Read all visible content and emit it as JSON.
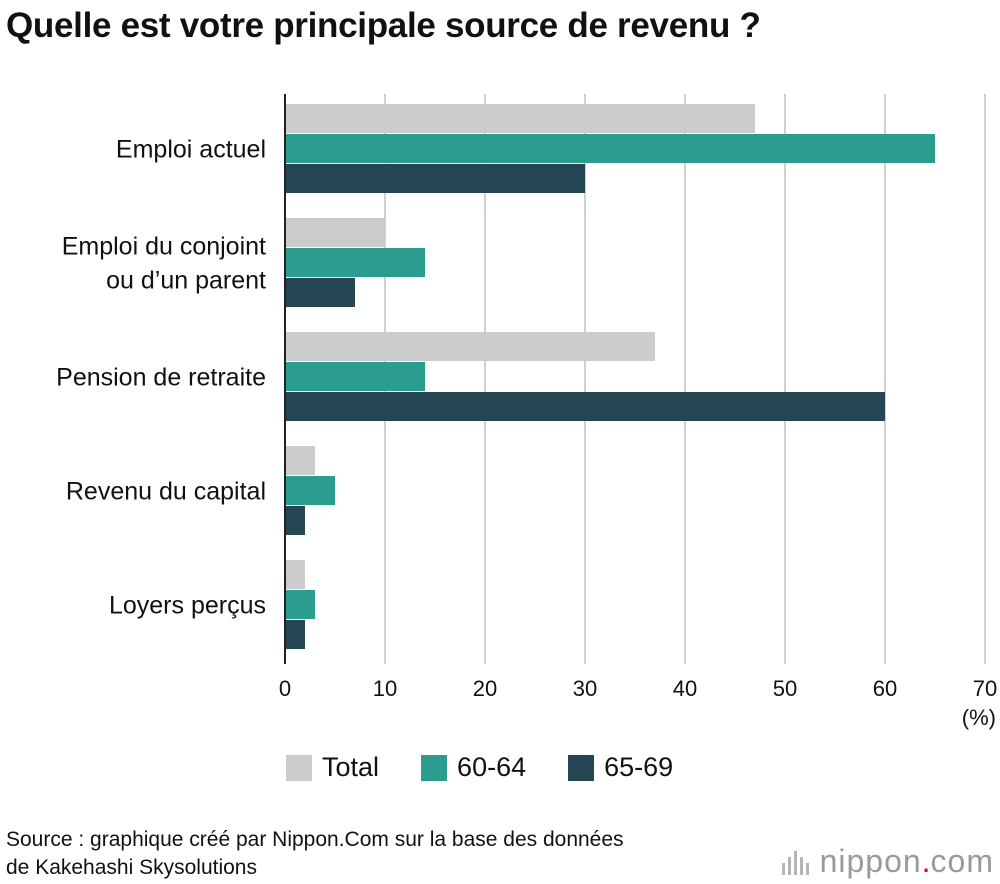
{
  "title": "Quelle est votre principale source de revenu ?",
  "chart_data": {
    "type": "bar",
    "orientation": "horizontal",
    "categories": [
      [
        "Emploi actuel"
      ],
      [
        "Emploi du conjoint",
        "ou d’un parent"
      ],
      [
        "Pension de retraite"
      ],
      [
        "Revenu du capital"
      ],
      [
        "Loyers perçus"
      ]
    ],
    "series": [
      {
        "name": "Total",
        "color": "#cccccc",
        "values": [
          47,
          10,
          37,
          3,
          2
        ]
      },
      {
        "name": "60-64",
        "color": "#2a9d8f",
        "values": [
          65,
          14,
          14,
          5,
          3
        ]
      },
      {
        "name": "65-69",
        "color": "#264653",
        "values": [
          30,
          7,
          60,
          2,
          2
        ]
      }
    ],
    "xlim": [
      0,
      70
    ],
    "xticks": [
      "0",
      "10",
      "20",
      "30",
      "40",
      "50",
      "60",
      "70"
    ],
    "xunit": "(%)",
    "grid": true,
    "legend": "bottom"
  },
  "source": {
    "line1": "Source : graphique créé par Nippon.Com sur la base des données",
    "line2": "de Kakehashi Skysolutions"
  },
  "logo": {
    "text": "nippon",
    "dot": ".",
    "suffix": "com"
  }
}
